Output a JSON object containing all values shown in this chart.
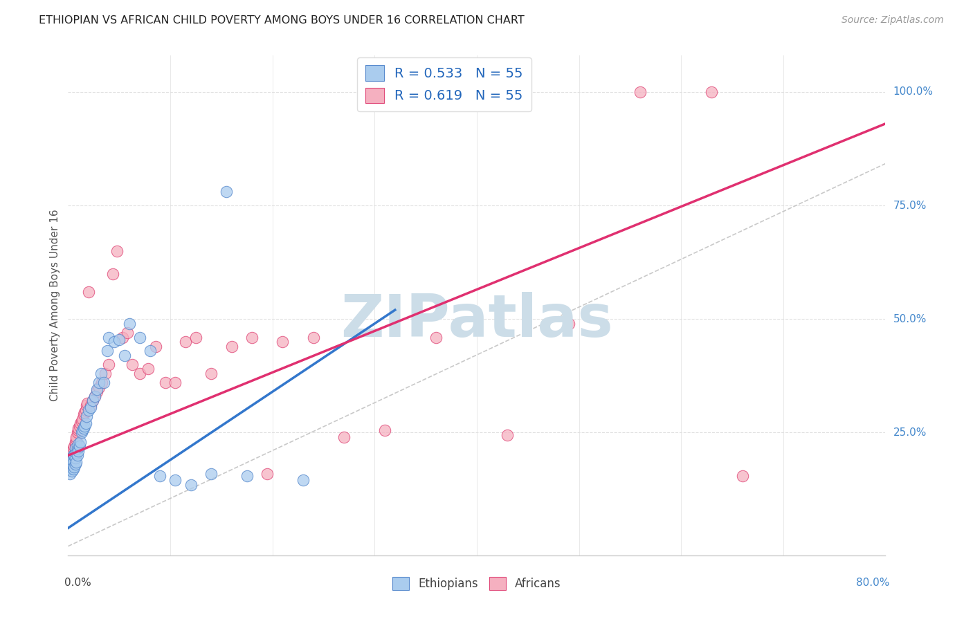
{
  "title": "ETHIOPIAN VS AFRICAN CHILD POVERTY AMONG BOYS UNDER 16 CORRELATION CHART",
  "source": "Source: ZipAtlas.com",
  "ylabel": "Child Poverty Among Boys Under 16",
  "ytick_labels": [
    "100.0%",
    "75.0%",
    "50.0%",
    "25.0%"
  ],
  "ytick_values": [
    1.0,
    0.75,
    0.5,
    0.25
  ],
  "xlim": [
    0.0,
    0.8
  ],
  "ylim": [
    -0.02,
    1.08
  ],
  "r_ethiopians": 0.533,
  "n_ethiopians": 55,
  "r_africans": 0.619,
  "n_africans": 55,
  "color_ethiopians_face": "#aaccee",
  "color_ethiopians_edge": "#5588cc",
  "color_africans_face": "#f5b0c0",
  "color_africans_edge": "#e04878",
  "color_trend_ethiopians": "#3377cc",
  "color_trend_africans": "#e03070",
  "color_diagonal": "#c0c0c0",
  "watermark_color": "#ccdde8",
  "background_color": "#ffffff",
  "grid_color": "#e0e0e0",
  "title_color": "#222222",
  "source_color": "#999999",
  "axis_label_color": "#555555",
  "right_label_color": "#4488cc",
  "eth_trend_x0": 0.0,
  "eth_trend_y0": 0.04,
  "eth_trend_x1": 0.32,
  "eth_trend_y1": 0.52,
  "afr_trend_x0": 0.0,
  "afr_trend_y0": 0.2,
  "afr_trend_x1": 0.8,
  "afr_trend_y1": 0.93,
  "ethiopians_x": [
    0.001,
    0.001,
    0.002,
    0.002,
    0.003,
    0.003,
    0.003,
    0.004,
    0.004,
    0.004,
    0.005,
    0.005,
    0.005,
    0.006,
    0.006,
    0.007,
    0.007,
    0.007,
    0.008,
    0.008,
    0.009,
    0.009,
    0.01,
    0.01,
    0.011,
    0.012,
    0.013,
    0.014,
    0.015,
    0.016,
    0.017,
    0.018,
    0.02,
    0.022,
    0.024,
    0.026,
    0.028,
    0.03,
    0.032,
    0.035,
    0.038,
    0.04,
    0.045,
    0.05,
    0.055,
    0.06,
    0.07,
    0.08,
    0.09,
    0.105,
    0.12,
    0.14,
    0.155,
    0.175,
    0.23
  ],
  "ethiopians_y": [
    0.175,
    0.18,
    0.16,
    0.17,
    0.175,
    0.185,
    0.195,
    0.165,
    0.18,
    0.19,
    0.17,
    0.185,
    0.2,
    0.175,
    0.2,
    0.18,
    0.195,
    0.215,
    0.185,
    0.205,
    0.2,
    0.215,
    0.21,
    0.225,
    0.22,
    0.23,
    0.25,
    0.255,
    0.26,
    0.265,
    0.27,
    0.285,
    0.3,
    0.305,
    0.32,
    0.33,
    0.345,
    0.36,
    0.38,
    0.36,
    0.43,
    0.46,
    0.45,
    0.455,
    0.42,
    0.49,
    0.46,
    0.43,
    0.155,
    0.145,
    0.135,
    0.16,
    0.78,
    0.155,
    0.145
  ],
  "africans_x": [
    0.003,
    0.004,
    0.005,
    0.006,
    0.007,
    0.007,
    0.008,
    0.008,
    0.009,
    0.01,
    0.01,
    0.011,
    0.012,
    0.013,
    0.014,
    0.015,
    0.016,
    0.017,
    0.018,
    0.019,
    0.02,
    0.022,
    0.024,
    0.026,
    0.028,
    0.03,
    0.033,
    0.036,
    0.04,
    0.044,
    0.048,
    0.053,
    0.058,
    0.063,
    0.07,
    0.078,
    0.086,
    0.095,
    0.105,
    0.115,
    0.125,
    0.14,
    0.16,
    0.18,
    0.195,
    0.21,
    0.24,
    0.27,
    0.31,
    0.36,
    0.43,
    0.49,
    0.56,
    0.63,
    0.66
  ],
  "africans_y": [
    0.2,
    0.21,
    0.215,
    0.22,
    0.225,
    0.23,
    0.235,
    0.24,
    0.25,
    0.255,
    0.26,
    0.265,
    0.27,
    0.275,
    0.28,
    0.29,
    0.295,
    0.3,
    0.31,
    0.315,
    0.56,
    0.31,
    0.32,
    0.33,
    0.34,
    0.35,
    0.36,
    0.38,
    0.4,
    0.6,
    0.65,
    0.46,
    0.47,
    0.4,
    0.38,
    0.39,
    0.44,
    0.36,
    0.36,
    0.45,
    0.46,
    0.38,
    0.44,
    0.46,
    0.16,
    0.45,
    0.46,
    0.24,
    0.255,
    0.46,
    0.245,
    0.49,
    1.0,
    1.0,
    0.155
  ]
}
